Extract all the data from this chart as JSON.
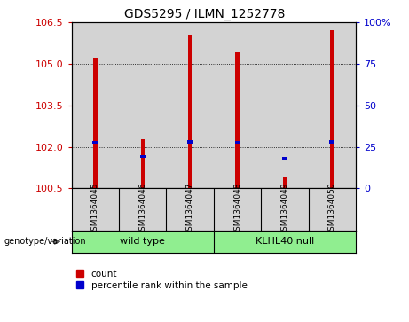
{
  "title": "GDS5295 / ILMN_1252778",
  "samples": [
    "GSM1364045",
    "GSM1364046",
    "GSM1364047",
    "GSM1364048",
    "GSM1364049",
    "GSM1364050"
  ],
  "bar_tops": [
    105.22,
    102.28,
    106.05,
    105.42,
    100.92,
    106.22
  ],
  "bar_base": 100.5,
  "blue_markers": [
    102.17,
    101.65,
    102.18,
    102.17,
    101.58,
    102.18
  ],
  "ylim": [
    100.5,
    106.5
  ],
  "yticks_left": [
    100.5,
    102.0,
    103.5,
    105.0,
    106.5
  ],
  "yticks_right": [
    0,
    25,
    50,
    75,
    100
  ],
  "yticks_right_vals": [
    100.5,
    102.0,
    103.5,
    105.0,
    106.5
  ],
  "bar_color": "#cc0000",
  "marker_color": "#0000cc",
  "bg_plot": "#d3d3d3",
  "bg_figure": "#ffffff",
  "group1_color": "#90ee90",
  "group2_color": "#90ee90",
  "group1_label": "wild type",
  "group2_label": "KLHL40 null",
  "genotype_label": "genotype/variation",
  "legend_count_label": "count",
  "legend_pct_label": "percentile rank within the sample",
  "bar_width": 0.08,
  "marker_size": 4.5
}
